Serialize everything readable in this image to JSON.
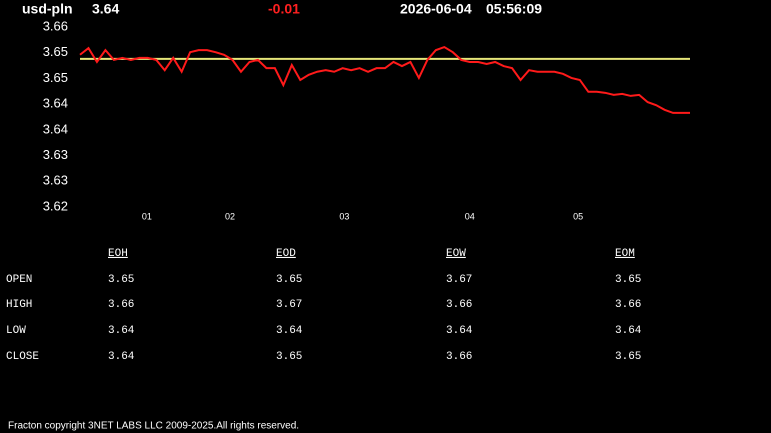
{
  "header": {
    "symbol": "usd-pln",
    "price": "3.64",
    "change": "-0.01",
    "date": "2026-06-04",
    "time": "05:56:09"
  },
  "chart_data": {
    "type": "line",
    "ylim": [
      3.6235,
      3.6585
    ],
    "yticks": [
      {
        "value": 3.6585,
        "label": "3.66"
      },
      {
        "value": 3.6535,
        "label": "3.65"
      },
      {
        "value": 3.6485,
        "label": "3.65"
      },
      {
        "value": 3.6435,
        "label": "3.64"
      },
      {
        "value": 3.6385,
        "label": "3.64"
      },
      {
        "value": 3.6335,
        "label": "3.63"
      },
      {
        "value": 3.6285,
        "label": "3.63"
      },
      {
        "value": 3.6235,
        "label": "3.62"
      }
    ],
    "xlim": [
      0,
      72
    ],
    "xticks": [
      {
        "value": 7.9,
        "label": "01"
      },
      {
        "value": 17.7,
        "label": "02"
      },
      {
        "value": 31.2,
        "label": "03"
      },
      {
        "value": 46.0,
        "label": "04"
      },
      {
        "value": 58.8,
        "label": "05"
      }
    ],
    "reference_line": {
      "value": 3.6523,
      "color": "#e6e67a"
    },
    "series": [
      {
        "color": "#ff1a1a",
        "values": [
          3.6531,
          3.6544,
          3.6517,
          3.654,
          3.6521,
          3.6525,
          3.6521,
          3.6525,
          3.6525,
          3.6521,
          3.6501,
          3.6525,
          3.6498,
          3.6536,
          3.654,
          3.654,
          3.6536,
          3.6531,
          3.6521,
          3.6498,
          3.6517,
          3.6521,
          3.6505,
          3.6505,
          3.6472,
          3.6511,
          3.6482,
          3.6492,
          3.6498,
          3.6501,
          3.6498,
          3.6505,
          3.6501,
          3.6505,
          3.6498,
          3.6505,
          3.6505,
          3.6517,
          3.6509,
          3.6517,
          3.6486,
          3.6521,
          3.654,
          3.6546,
          3.6536,
          3.6521,
          3.6517,
          3.6517,
          3.6513,
          3.6517,
          3.6509,
          3.6505,
          3.6482,
          3.6501,
          3.6498,
          3.6498,
          3.6498,
          3.6494,
          3.6486,
          3.6482,
          3.6459,
          3.6459,
          3.6457,
          3.6453,
          3.6455,
          3.6451,
          3.6453,
          3.6439,
          3.6433,
          3.6424,
          3.6418,
          3.6418,
          3.6418
        ]
      }
    ]
  },
  "table": {
    "columns": [
      "EOH",
      "EOD",
      "EOW",
      "EOM"
    ],
    "rows": [
      {
        "label": "OPEN",
        "values": [
          3.65,
          3.65,
          3.67,
          3.65
        ]
      },
      {
        "label": "HIGH",
        "values": [
          3.66,
          3.67,
          3.66,
          3.66
        ]
      },
      {
        "label": "LOW",
        "values": [
          3.64,
          3.64,
          3.64,
          3.64
        ]
      },
      {
        "label": "CLOSE",
        "values": [
          3.64,
          3.65,
          3.66,
          3.65
        ]
      }
    ]
  },
  "footer": "Fracton copyright 3NET LABS LLC 2009-2025.All rights reserved."
}
